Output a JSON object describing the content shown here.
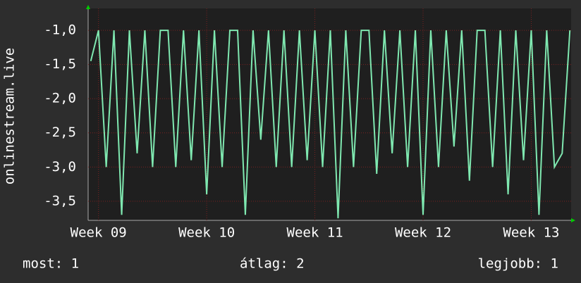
{
  "chart_data": {
    "type": "line",
    "y_label": "onlinestream.live",
    "x": [
      -0.5,
      0,
      0.5,
      1,
      1.5,
      2,
      2.5,
      3,
      3.5,
      4,
      4.5,
      5,
      5.5,
      6,
      6.5,
      7,
      7.5,
      8,
      8.5,
      9,
      9.5,
      10,
      10.5,
      11,
      11.5,
      12,
      12.5,
      13,
      13.5,
      14,
      14.5,
      15,
      15.5,
      16,
      16.5,
      17,
      17.5,
      18,
      18.5,
      19,
      19.5,
      20,
      20.5,
      21,
      21.5,
      22,
      22.5,
      23,
      23.5,
      24,
      24.5,
      25,
      25.5,
      26,
      26.5,
      27,
      27.5,
      28,
      28.5,
      29,
      29.5,
      30,
      30.5
    ],
    "series": [
      {
        "color": "#7fe8b0",
        "values": [
          -1.45,
          -1.0,
          -3.0,
          -1.0,
          -3.7,
          -1.0,
          -2.8,
          -1.0,
          -3.0,
          -1.0,
          -1.0,
          -3.0,
          -1.0,
          -2.9,
          -1.0,
          -3.4,
          -1.0,
          -3.0,
          -1.0,
          -1.0,
          -3.7,
          -1.0,
          -2.6,
          -1.0,
          -3.0,
          -1.0,
          -3.0,
          -1.0,
          -2.9,
          -1.0,
          -3.0,
          -1.0,
          -3.75,
          -1.0,
          -3.0,
          -1.0,
          -1.0,
          -3.1,
          -1.0,
          -2.8,
          -1.0,
          -3.0,
          -1.0,
          -3.7,
          -1.0,
          -3.0,
          -1.0,
          -2.7,
          -1.0,
          -3.2,
          -1.0,
          -1.0,
          -3.0,
          -1.0,
          -3.4,
          -1.0,
          -2.9,
          -1.0,
          -3.7,
          -1.0,
          -3.0,
          -2.8,
          -1.0
        ]
      }
    ],
    "xlim": [
      -0.67,
      30.58
    ],
    "xticks": [
      {
        "value": 0,
        "label": "Week 09"
      },
      {
        "value": 7,
        "label": "Week 10"
      },
      {
        "value": 14,
        "label": "Week 11"
      },
      {
        "value": 21,
        "label": "Week 12"
      },
      {
        "value": 28,
        "label": "Week 13"
      }
    ],
    "ylim": [
      -3.78,
      -0.68
    ],
    "yticks": [
      {
        "value": -1,
        "label": "-1,0"
      },
      {
        "value": -1.5,
        "label": "-1,5"
      },
      {
        "value": -2,
        "label": "-2,0"
      },
      {
        "value": -2.5,
        "label": "-2,5"
      },
      {
        "value": -3,
        "label": "-3,0"
      },
      {
        "value": -3.5,
        "label": "-3,5"
      }
    ],
    "grid": true,
    "footer": {
      "current": "most: 1",
      "average": "átlag: 2",
      "best": "legjobb: 1"
    }
  }
}
